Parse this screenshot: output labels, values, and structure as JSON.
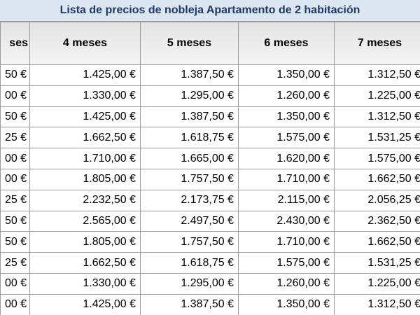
{
  "title": "Lista de precios de nobleja Apartamento de 2 habitación",
  "table": {
    "header": [
      "ses",
      "4 meses",
      "5 meses",
      "6 meses",
      "7 meses"
    ],
    "rows": [
      [
        "50 €",
        "1.425,00 €",
        "1.387,50 €",
        "1.350,00 €",
        "1.312,50 €"
      ],
      [
        "00 €",
        "1.330,00 €",
        "1.295,00 €",
        "1.260,00 €",
        "1.225,00 €"
      ],
      [
        "50 €",
        "1.425,00 €",
        "1.387,50 €",
        "1.350,00 €",
        "1.312,50 €"
      ],
      [
        "25 €",
        "1.662,50 €",
        "1.618,75 €",
        "1.575,00 €",
        "1.531,25 €"
      ],
      [
        "00 €",
        "1.710,00 €",
        "1.665,00 €",
        "1.620,00 €",
        "1.575,00 €"
      ],
      [
        "00 €",
        "1.805,00 €",
        "1.757,50 €",
        "1.710,00 €",
        "1.662,50 €"
      ],
      [
        "25 €",
        "2.232,50 €",
        "2.173,75 €",
        "2.115,00 €",
        "2.056,25 €"
      ],
      [
        "50 €",
        "2.565,00 €",
        "2.497,50 €",
        "2.430,00 €",
        "2.362,50 €"
      ],
      [
        "50 €",
        "1.805,00 €",
        "1.757,50 €",
        "1.710,00 €",
        "1.662,50 €"
      ],
      [
        "25 €",
        "1.662,50 €",
        "1.618,75 €",
        "1.575,00 €",
        "1.531,25 €"
      ],
      [
        "00 €",
        "1.330,00 €",
        "1.295,00 €",
        "1.260,00 €",
        "1.225,00 €"
      ],
      [
        "00 €",
        "1.425,00 €",
        "1.387,50 €",
        "1.350,00 €",
        "1.312,50 €"
      ]
    ]
  }
}
